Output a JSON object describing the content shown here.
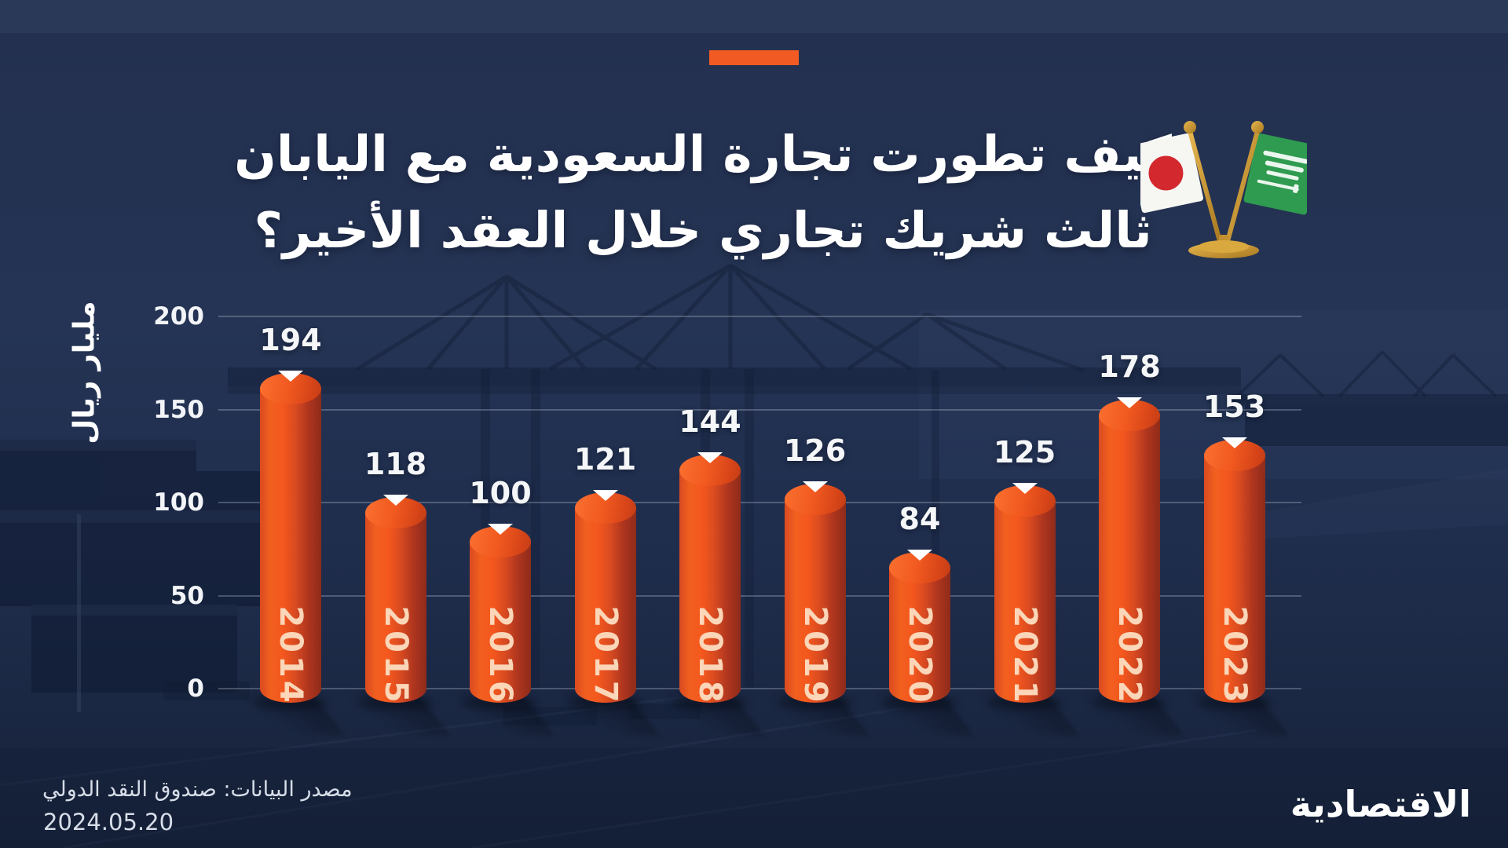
{
  "colors": {
    "accent_orange": "#f15a22",
    "background_navy": "#223150",
    "bar_orange": "#f4571e",
    "bar_dark_edge": "#8e2b1a",
    "year_text": "#fbd6b8",
    "grid": "rgba(214,223,238,0.27)"
  },
  "header": {
    "dash": "accent-dash",
    "title_line1": "كيف تطورت تجارة السعودية مع اليابان",
    "title_line2": "ثالث شريك تجاري خلال العقد الأخير؟"
  },
  "flags": {
    "left": "japan-flag",
    "right": "saudi-arabia-flag",
    "stand": "gold-desk-stand"
  },
  "chart_data": {
    "type": "bar",
    "title": "كيف تطورت تجارة السعودية مع اليابان ثالث شريك تجاري خلال العقد الأخير؟",
    "categories": [
      "2014",
      "2015",
      "2016",
      "2017",
      "2018",
      "2019",
      "2020",
      "2021",
      "2022",
      "2023"
    ],
    "values": [
      194,
      118,
      100,
      121,
      144,
      126,
      84,
      125,
      178,
      153
    ],
    "ylabel": "مليار ريال",
    "yticks": [
      200,
      150,
      100,
      50,
      0
    ],
    "ylim": [
      0,
      200
    ],
    "grid": true,
    "legend": "none",
    "bar_style": "3d-cylinder"
  },
  "footer": {
    "source": "مصدر البيانات: صندوق النقد الدولي",
    "date": "2024.05.20",
    "brand": "الاقتصادية"
  }
}
